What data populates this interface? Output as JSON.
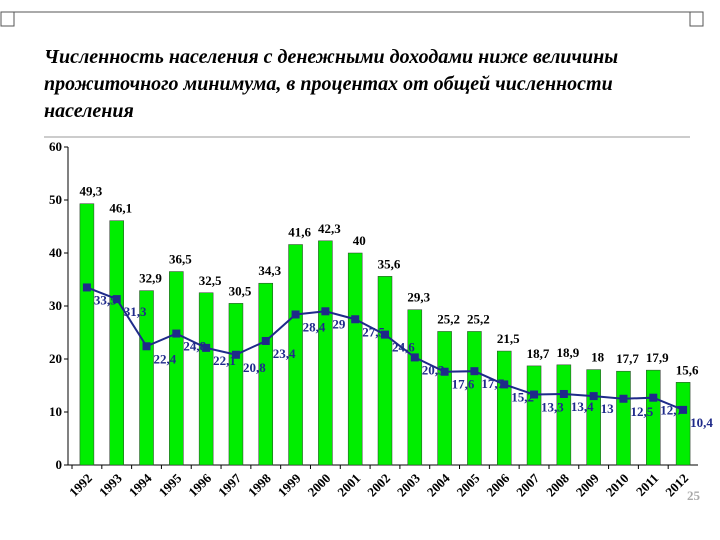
{
  "chart_data": {
    "type": "bar",
    "title": "Численность населения с денежными доходами ниже величины прожиточного минимума, в процентах от общей численности населения",
    "categories": [
      "1992",
      "1993",
      "1994",
      "1995",
      "1996",
      "1997",
      "1998",
      "1999",
      "2000",
      "2001",
      "2002",
      "2003",
      "2004",
      "2005",
      "2006",
      "2007",
      "2008",
      "2009",
      "2010",
      "2011",
      "2012"
    ],
    "series": [
      {
        "type": "bar",
        "color": "#00ee00",
        "values": [
          49.3,
          46.1,
          32.9,
          36.5,
          32.5,
          30.5,
          34.3,
          41.6,
          42.3,
          40,
          35.6,
          29.3,
          25.2,
          25.2,
          21.5,
          18.7,
          18.9,
          18,
          17.7,
          17.9,
          15.6
        ],
        "value_labels": [
          "49,3",
          "46,1",
          "32,9",
          "36,5",
          "32,5",
          "30,5",
          "34,3",
          "41,6",
          "42,3",
          "40",
          "35,6",
          "29,3",
          "25,2",
          "25,2",
          "21,5",
          "18,7",
          "18,9",
          "18",
          "17,7",
          "17,9",
          "15,6"
        ]
      },
      {
        "type": "line",
        "color": "#1f2a8a",
        "values": [
          33.5,
          31.3,
          22.4,
          24.8,
          22.1,
          20.8,
          23.4,
          28.4,
          29,
          27.5,
          24.6,
          20.3,
          17.6,
          17.7,
          15.2,
          13.3,
          13.4,
          13,
          12.5,
          12.7,
          10.4
        ],
        "value_labels": [
          "33,5",
          "31,3",
          "22,4",
          "24,8",
          "22,1",
          "20,8",
          "23,4",
          "28,4",
          "29",
          "27,5",
          "24,6",
          "20,3",
          "17,6",
          "17,7",
          "15,2",
          "13,3",
          "13,4",
          "13",
          "12,5",
          "12,7",
          "10,4"
        ]
      }
    ],
    "ylim": [
      0,
      60
    ],
    "yticks": [
      0,
      10,
      20,
      30,
      40,
      50,
      60
    ],
    "grid": false
  },
  "page_number": "25"
}
